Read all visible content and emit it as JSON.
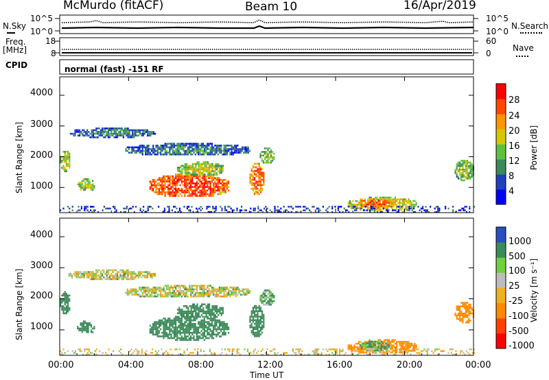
{
  "header": {
    "station": "McMurdo (fitACF)",
    "beam": "Beam 10",
    "date": "16/Apr/2019"
  },
  "noise_panel": {
    "left_label": "N.Sky",
    "left_ticks": [
      "10^5",
      "10^0"
    ],
    "right_label": "N.Search",
    "right_ticks": [
      "10^5",
      "10^0"
    ]
  },
  "freq_panel": {
    "left_label_line1": "Freq.",
    "left_label_line2": "[MHz]",
    "left_ticks": [
      "18",
      "8"
    ],
    "right_label": "Nave",
    "right_ticks": [
      "60",
      "0"
    ]
  },
  "cpid": {
    "label": "CPID",
    "text": "normal (fast) -151 RF"
  },
  "x_axis": {
    "label": "Time UT",
    "ticks": [
      "00:00",
      "04:00",
      "08:00",
      "12:00",
      "16:00",
      "20:00",
      "00:00"
    ]
  },
  "power_panel": {
    "ylabel": "Slant Range [km]",
    "yticks": [
      "4000",
      "3000",
      "2000",
      "1000"
    ],
    "colorbar_label": "Power [dB]",
    "colorbar_ticks": [
      "28",
      "24",
      "20",
      "16",
      "12",
      "8",
      "4"
    ],
    "colors": [
      "#0000ff",
      "#2040c0",
      "#3a8a5a",
      "#5fc040",
      "#d6c800",
      "#ff9400",
      "#ff4800",
      "#ff0000"
    ]
  },
  "velocity_panel": {
    "ylabel": "Slant Range [km]",
    "yticks": [
      "4000",
      "3000",
      "2000",
      "1000"
    ],
    "colorbar_label": "Velocity [m s⁻¹]",
    "colorbar_ticks": [
      "1000",
      "500",
      "100",
      "25",
      "-25",
      "-100",
      "-500",
      "-1000"
    ],
    "colors": [
      "#2a4fbf",
      "#3d8b5a",
      "#6fd040",
      "#bdbdbd",
      "#f0b020",
      "#ff8a00",
      "#ff4000",
      "#ff0000"
    ]
  },
  "chart_data": [
    {
      "type": "heatmap",
      "title": "Power",
      "xlabel": "Time UT",
      "ylabel": "Slant Range [km]",
      "xlim": [
        0,
        24
      ],
      "ylim": [
        180,
        4600
      ],
      "color_scale": "Power [dB]",
      "clim": [
        0,
        32
      ],
      "regions": [
        {
          "t0": 0.0,
          "t1": 0.6,
          "r0": 1550,
          "r1": 2250,
          "value": 14
        },
        {
          "t0": 1.0,
          "t1": 2.0,
          "r0": 900,
          "r1": 1300,
          "value": 13
        },
        {
          "t0": 0.5,
          "t1": 5.5,
          "r0": 2650,
          "r1": 2950,
          "value": 6
        },
        {
          "t0": 3.8,
          "t1": 11.0,
          "r0": 2050,
          "r1": 2450,
          "value": 6
        },
        {
          "t0": 5.2,
          "t1": 9.8,
          "r0": 700,
          "r1": 1450,
          "value": 24
        },
        {
          "t0": 6.8,
          "t1": 9.5,
          "r0": 1400,
          "r1": 1850,
          "value": 14
        },
        {
          "t0": 11.0,
          "t1": 11.8,
          "r0": 800,
          "r1": 1800,
          "value": 22
        },
        {
          "t0": 11.6,
          "t1": 12.4,
          "r0": 1800,
          "r1": 2300,
          "value": 12
        },
        {
          "t0": 16.7,
          "t1": 20.7,
          "r0": 250,
          "r1": 700,
          "value": 16
        },
        {
          "t0": 17.3,
          "t1": 19.2,
          "r0": 350,
          "r1": 650,
          "value": 22
        },
        {
          "t0": 22.9,
          "t1": 24.0,
          "r0": 1250,
          "r1": 1900,
          "value": 12
        },
        {
          "t0": 0.0,
          "t1": 24.0,
          "r0": 180,
          "r1": 400,
          "value": 5
        }
      ]
    },
    {
      "type": "heatmap",
      "title": "Velocity",
      "xlabel": "Time UT",
      "ylabel": "Slant Range [km]",
      "xlim": [
        0,
        24
      ],
      "ylim": [
        180,
        4600
      ],
      "color_scale": "Velocity [m s⁻¹]",
      "clim": [
        -1000,
        1000
      ],
      "regions": [
        {
          "t0": 0.0,
          "t1": 0.6,
          "r0": 1550,
          "r1": 2250,
          "value": 300
        },
        {
          "t0": 1.0,
          "t1": 2.0,
          "r0": 900,
          "r1": 1300,
          "value": 300
        },
        {
          "t0": 0.5,
          "t1": 5.5,
          "r0": 2650,
          "r1": 2950,
          "value": 0
        },
        {
          "t0": 3.8,
          "t1": 11.0,
          "r0": 2050,
          "r1": 2450,
          "value": 0
        },
        {
          "t0": 5.2,
          "t1": 9.8,
          "r0": 700,
          "r1": 1450,
          "value": 300
        },
        {
          "t0": 6.8,
          "t1": 9.5,
          "r0": 1400,
          "r1": 1850,
          "value": 300
        },
        {
          "t0": 11.0,
          "t1": 11.8,
          "r0": 800,
          "r1": 1800,
          "value": 300
        },
        {
          "t0": 11.6,
          "t1": 12.4,
          "r0": 1800,
          "r1": 2300,
          "value": 120
        },
        {
          "t0": 16.7,
          "t1": 20.7,
          "r0": 250,
          "r1": 700,
          "value": -200
        },
        {
          "t0": 17.3,
          "t1": 19.2,
          "r0": 350,
          "r1": 650,
          "value": 120
        },
        {
          "t0": 22.9,
          "t1": 24.0,
          "r0": 1250,
          "r1": 1900,
          "value": -300
        },
        {
          "t0": 0.0,
          "t1": 24.0,
          "r0": 180,
          "r1": 400,
          "value": -30
        }
      ]
    }
  ]
}
